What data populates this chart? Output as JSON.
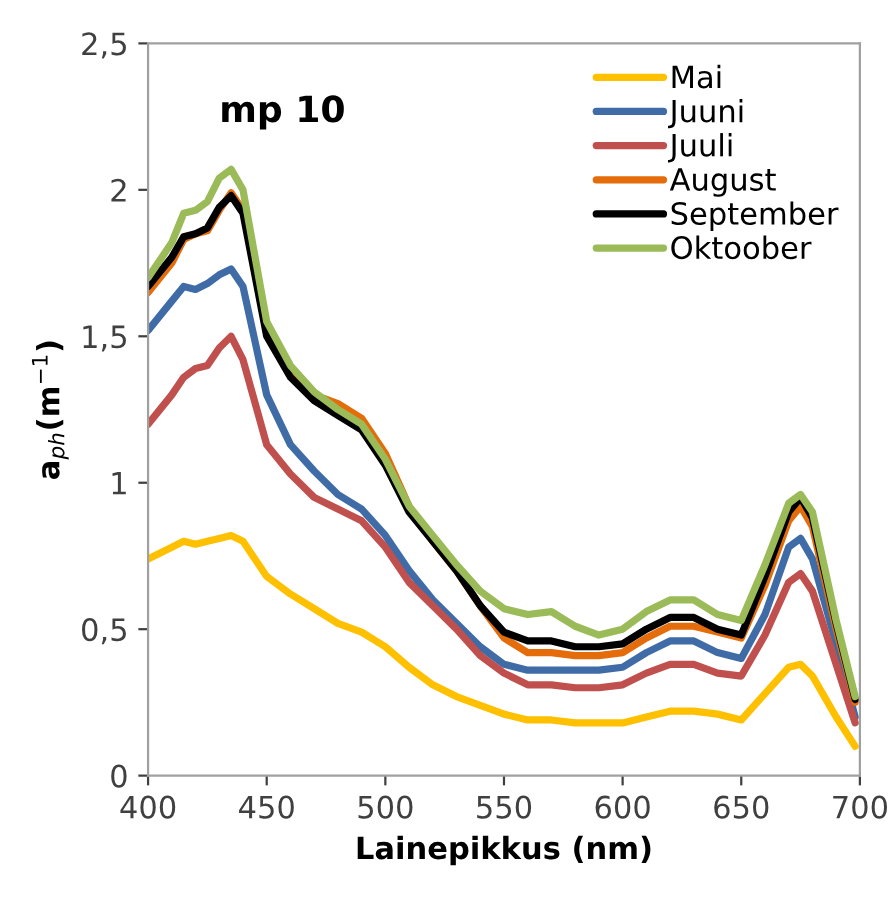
{
  "chart_data": {
    "type": "line",
    "xlabel": "Lainepikkus (nm)",
    "ylabel": "a$_{ph}$(m$^{−1}$)",
    "annotations": [
      "mp 10"
    ],
    "x": [
      400,
      410,
      415,
      420,
      425,
      430,
      435,
      440,
      450,
      460,
      470,
      480,
      490,
      500,
      510,
      520,
      530,
      540,
      550,
      560,
      570,
      580,
      590,
      600,
      610,
      620,
      630,
      640,
      650,
      660,
      670,
      675,
      680,
      690,
      698
    ],
    "series": [
      {
        "name": "Mai",
        "color": "#ffc000",
        "values": [
          0.74,
          0.78,
          0.8,
          0.79,
          0.8,
          0.81,
          0.82,
          0.8,
          0.68,
          0.62,
          0.57,
          0.52,
          0.49,
          0.44,
          0.37,
          0.31,
          0.27,
          0.24,
          0.21,
          0.19,
          0.19,
          0.18,
          0.18,
          0.18,
          0.2,
          0.22,
          0.22,
          0.21,
          0.19,
          0.28,
          0.37,
          0.38,
          0.34,
          0.2,
          0.1
        ]
      },
      {
        "name": "Juuni",
        "color": "#3f6ca6",
        "values": [
          1.52,
          1.62,
          1.67,
          1.66,
          1.68,
          1.71,
          1.73,
          1.67,
          1.3,
          1.13,
          1.04,
          0.96,
          0.91,
          0.82,
          0.7,
          0.6,
          0.52,
          0.44,
          0.38,
          0.36,
          0.36,
          0.36,
          0.36,
          0.37,
          0.42,
          0.46,
          0.46,
          0.42,
          0.4,
          0.55,
          0.78,
          0.81,
          0.74,
          0.45,
          0.2
        ]
      },
      {
        "name": "Juuli",
        "color": "#c0504d",
        "values": [
          1.2,
          1.3,
          1.36,
          1.39,
          1.4,
          1.46,
          1.5,
          1.42,
          1.13,
          1.03,
          0.95,
          0.91,
          0.87,
          0.78,
          0.66,
          0.58,
          0.5,
          0.41,
          0.35,
          0.31,
          0.31,
          0.3,
          0.3,
          0.31,
          0.35,
          0.38,
          0.38,
          0.35,
          0.34,
          0.48,
          0.66,
          0.69,
          0.63,
          0.38,
          0.18
        ]
      },
      {
        "name": "August",
        "color": "#e46c0a",
        "values": [
          1.65,
          1.75,
          1.83,
          1.85,
          1.86,
          1.93,
          1.99,
          1.93,
          1.52,
          1.38,
          1.3,
          1.27,
          1.22,
          1.1,
          0.92,
          0.8,
          0.7,
          0.58,
          0.47,
          0.42,
          0.42,
          0.41,
          0.41,
          0.42,
          0.47,
          0.51,
          0.51,
          0.49,
          0.47,
          0.65,
          0.87,
          0.92,
          0.85,
          0.5,
          0.25
        ]
      },
      {
        "name": "September",
        "color": "#000000",
        "values": [
          1.67,
          1.77,
          1.84,
          1.85,
          1.87,
          1.94,
          1.98,
          1.92,
          1.5,
          1.36,
          1.28,
          1.23,
          1.18,
          1.06,
          0.9,
          0.8,
          0.7,
          0.58,
          0.49,
          0.46,
          0.46,
          0.44,
          0.44,
          0.45,
          0.5,
          0.54,
          0.54,
          0.5,
          0.48,
          0.68,
          0.9,
          0.95,
          0.88,
          0.52,
          0.26
        ]
      },
      {
        "name": "Oktoober",
        "color": "#9bbb59",
        "values": [
          1.7,
          1.82,
          1.92,
          1.93,
          1.96,
          2.04,
          2.07,
          2.0,
          1.55,
          1.4,
          1.31,
          1.25,
          1.2,
          1.08,
          0.92,
          0.82,
          0.72,
          0.63,
          0.57,
          0.55,
          0.56,
          0.51,
          0.48,
          0.5,
          0.56,
          0.6,
          0.6,
          0.55,
          0.53,
          0.72,
          0.93,
          0.96,
          0.9,
          0.53,
          0.27
        ]
      }
    ],
    "xlim": [
      400,
      700
    ],
    "xticks": [
      400,
      450,
      500,
      550,
      600,
      650,
      700
    ],
    "ylim": [
      0,
      2.5
    ],
    "yticks": [
      0,
      {
        "value": 0.5,
        "label": "0,5"
      },
      1,
      {
        "value": 1.5,
        "label": "1,5"
      },
      2,
      {
        "value": 2.5,
        "label": "2,5"
      }
    ],
    "grid": false,
    "legend": "top right",
    "marker": "none",
    "line_style": "solid"
  }
}
